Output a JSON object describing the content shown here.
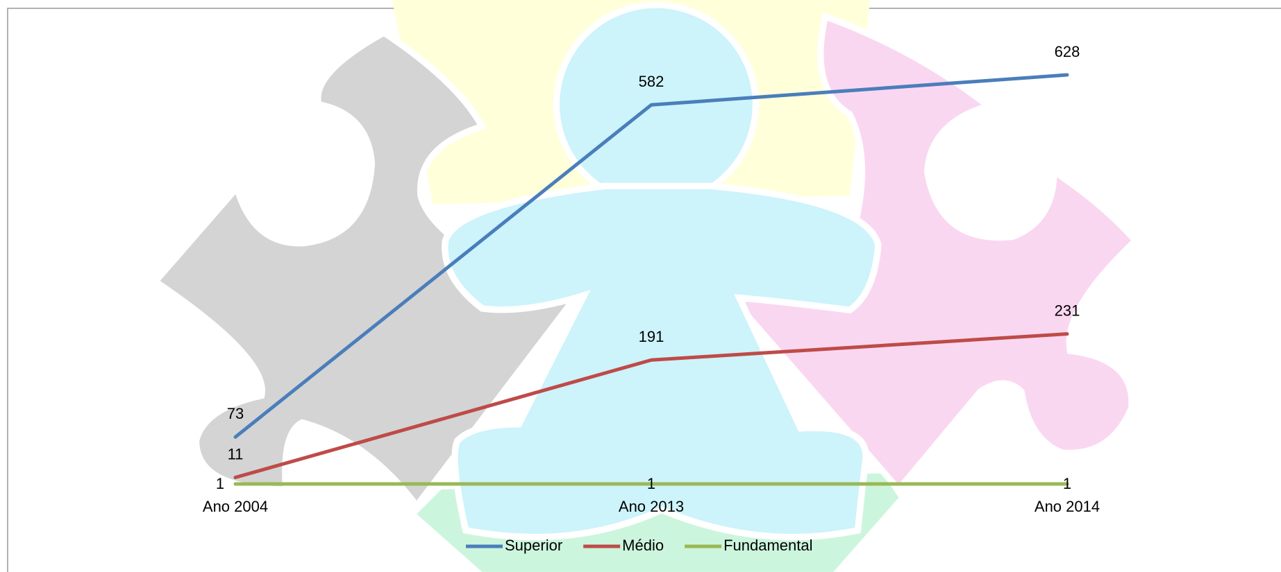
{
  "chart_data": {
    "type": "line",
    "categories": [
      "Ano 2004",
      "Ano 2013",
      "Ano 2014"
    ],
    "series": [
      {
        "name": "Superior",
        "color": "#4a7ebb",
        "values": [
          73,
          582,
          628
        ]
      },
      {
        "name": "Médio",
        "color": "#be4b48",
        "values": [
          11,
          191,
          231
        ]
      },
      {
        "name": "Fundamental",
        "color": "#98b954",
        "values": [
          1,
          1,
          1
        ]
      }
    ],
    "legend": "bottom"
  }
}
